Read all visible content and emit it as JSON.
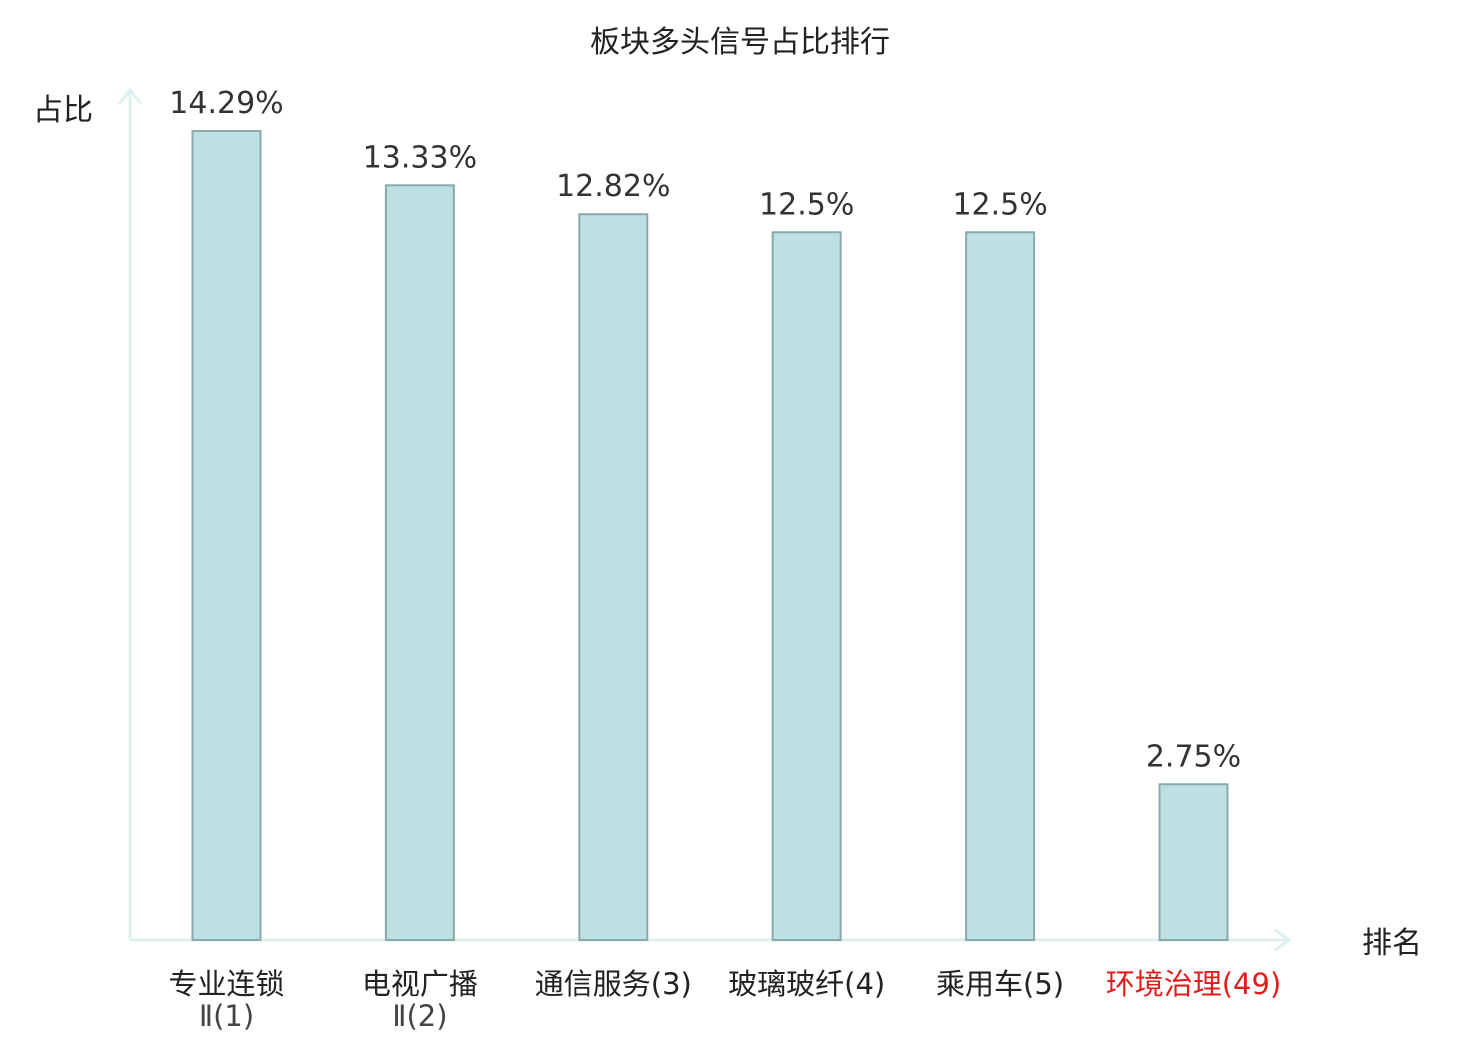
{
  "chart_data": {
    "type": "bar",
    "title": "板块多头信号占比排行",
    "ylabel": "占比",
    "xlabel": "排名",
    "categories": [
      {
        "line1": "专业连锁",
        "line2": "Ⅱ(1)",
        "highlight": false
      },
      {
        "line1": "电视广播",
        "line2": "Ⅱ(2)",
        "highlight": false
      },
      {
        "line1": "通信服务(3)",
        "line2": "",
        "highlight": false
      },
      {
        "line1": "玻璃玻纤(4)",
        "line2": "",
        "highlight": false
      },
      {
        "line1": "乘用车(5)",
        "line2": "",
        "highlight": false
      },
      {
        "line1": "环境治理(49)",
        "line2": "",
        "highlight": true
      }
    ],
    "values": [
      14.29,
      13.33,
      12.82,
      12.5,
      12.5,
      2.75
    ],
    "value_labels": [
      "14.29%",
      "13.33%",
      "12.82%",
      "12.5%",
      "12.5%",
      "2.75%"
    ],
    "unit": "%",
    "ylim": [
      0,
      14.29
    ],
    "grid": false,
    "legend": "none"
  },
  "colors": {
    "bar_fill": "#bde0e3",
    "bar_stroke": "#8aa9aa",
    "axis": "#dff1ef",
    "text": "#333333",
    "highlight": "#e31c1c"
  }
}
